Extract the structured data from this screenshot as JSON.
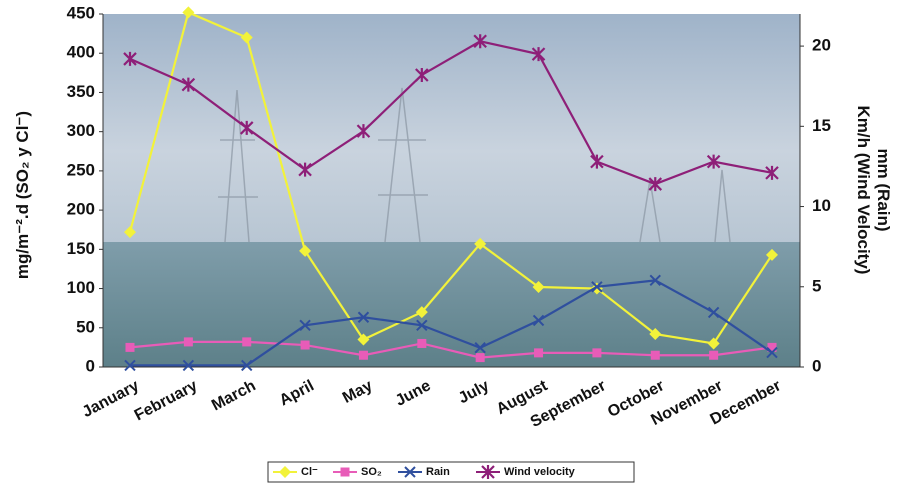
{
  "chart_data": {
    "type": "line",
    "y_label": "mg/m⁻².d (SO₂ y Cl⁻)",
    "y2_label": [
      "Km/h (Wind Velocity)",
      "mm (Rain)"
    ],
    "categories": [
      "January",
      "February",
      "March",
      "April",
      "May",
      "June",
      "July",
      "August",
      "September",
      "October",
      "November",
      "December"
    ],
    "ylim": [
      0,
      450
    ],
    "yticks": [
      0,
      50,
      100,
      150,
      200,
      250,
      300,
      350,
      400,
      450
    ],
    "y2lim": [
      0,
      22
    ],
    "y2ticks": [
      0,
      5,
      10,
      15,
      20
    ],
    "series": [
      {
        "name": "Cl⁻",
        "color": "#f2f23a",
        "marker": "diamond",
        "values": [
          172,
          452,
          420,
          148,
          35,
          70,
          157,
          102,
          100,
          42,
          30,
          143
        ]
      },
      {
        "name": "SO₂",
        "color": "#e85cb8",
        "marker": "square",
        "values": [
          25,
          32,
          32,
          28,
          15,
          30,
          12,
          18,
          18,
          15,
          15,
          25
        ]
      },
      {
        "name": "Rain",
        "color": "#2f4f9e",
        "marker": "x",
        "axis": "y2",
        "values": [
          0.1,
          0.1,
          0.1,
          2.6,
          3.1,
          2.6,
          1.2,
          2.9,
          5.0,
          5.4,
          3.4,
          0.9
        ]
      },
      {
        "name": "Wind velocity",
        "color": "#8e1f78",
        "marker": "star",
        "axis": "y2",
        "values": [
          19.2,
          17.6,
          14.9,
          12.3,
          14.7,
          18.2,
          20.3,
          19.5,
          12.8,
          11.4,
          12.8,
          12.1
        ]
      }
    ]
  }
}
